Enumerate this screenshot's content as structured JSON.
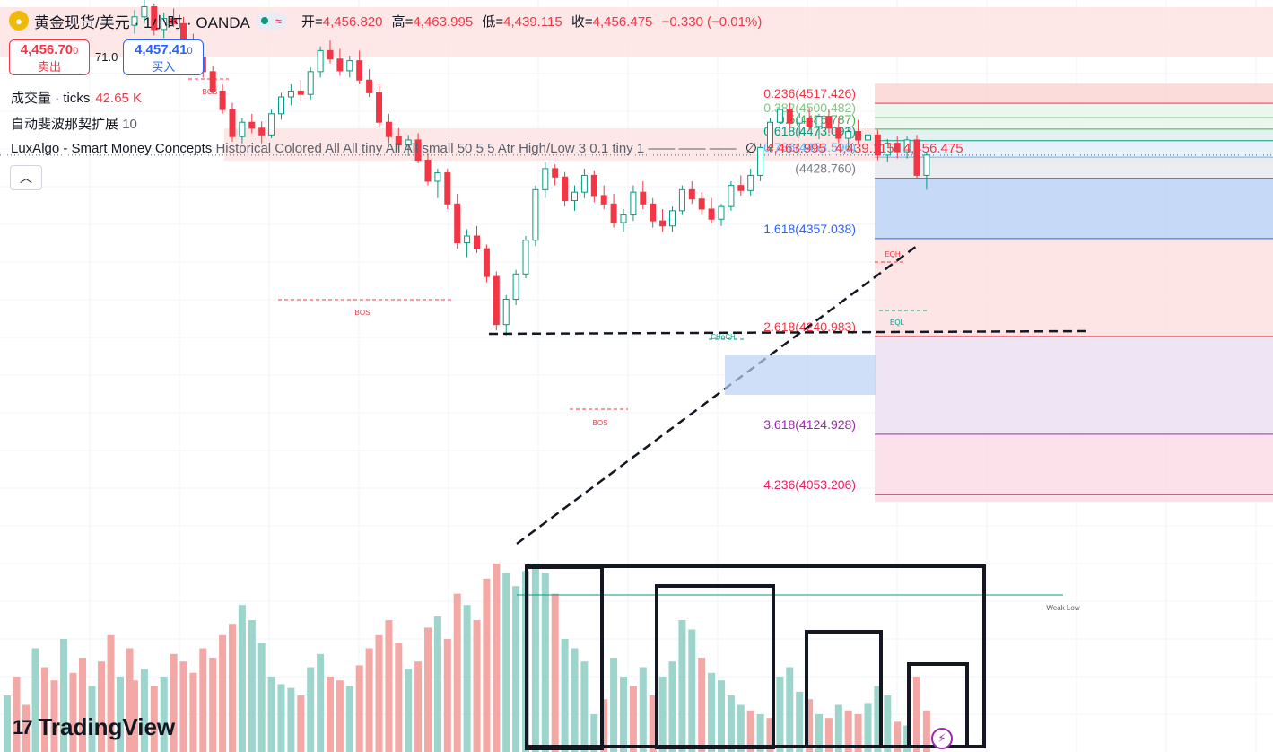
{
  "header": {
    "logo_icon": "gold-coin-icon",
    "title": "黄金现货/美元 · 1小时 · OANDA",
    "status_icon": "market-open-dot-icon",
    "wave_icon": "approx-wave-icon",
    "wave_glyph": "≈",
    "ohlc": {
      "open_label": "开=",
      "open": "4,456.820",
      "high_label": "高=",
      "high": "4,463.995",
      "low_label": "低=",
      "low": "4,439.115",
      "close_label": "收=",
      "close": "4,456.475",
      "change": "−0.330 (−0.01%)"
    }
  },
  "trade": {
    "sell_price": "4,456.70",
    "sell_price_small": "0",
    "sell_label": "卖出",
    "spread": "71.0",
    "buy_price": "4,457.41",
    "buy_price_small": "0",
    "buy_label": "买入"
  },
  "indicators": {
    "volume_name": "成交量 · ticks",
    "volume_value": "42.65 K",
    "fib_name": "自动斐波那契扩展",
    "fib_value": "10",
    "smc_name": "LuxAlgo - Smart Money Concepts",
    "smc_params": "Historical Colored All All tiny All All small 50 5 5 Atr High/Low 3 0.1 tiny 1",
    "smc_dashes": "—— —— ——",
    "smc_symbol": "∅",
    "smc_values": [
      "4,463.995",
      "4,439.115",
      "4,456.475"
    ],
    "collapse_glyph": "︿"
  },
  "brand": {
    "mark": "17",
    "name": "TradingView",
    "bolt_icon": "lightning-icon",
    "bolt_glyph": "⚡"
  },
  "colors": {
    "up": "#089981",
    "down": "#f23645",
    "vol_up": "#9dd4cc",
    "vol_down": "#f4a8a6"
  },
  "chart_data": {
    "type": "candlestick",
    "timeframe": "1小时",
    "y_range": [
      3980,
      4640
    ],
    "candles": [
      [
        4610,
        4628,
        4600,
        4620
      ],
      [
        4620,
        4640,
        4612,
        4632
      ],
      [
        4632,
        4636,
        4598,
        4605
      ],
      [
        4605,
        4625,
        4595,
        4618
      ],
      [
        4618,
        4630,
        4608,
        4612
      ],
      [
        4612,
        4620,
        4585,
        4590
      ],
      [
        4590,
        4600,
        4568,
        4572
      ],
      [
        4572,
        4580,
        4548,
        4555
      ],
      [
        4555,
        4562,
        4528,
        4532
      ],
      [
        4532,
        4540,
        4505,
        4510
      ],
      [
        4510,
        4518,
        4472,
        4478
      ],
      [
        4478,
        4500,
        4470,
        4495
      ],
      [
        4495,
        4505,
        4482,
        4488
      ],
      [
        4488,
        4496,
        4470,
        4480
      ],
      [
        4480,
        4510,
        4476,
        4505
      ],
      [
        4505,
        4530,
        4498,
        4525
      ],
      [
        4525,
        4540,
        4515,
        4532
      ],
      [
        4532,
        4545,
        4520,
        4528
      ],
      [
        4528,
        4560,
        4522,
        4555
      ],
      [
        4555,
        4585,
        4548,
        4580
      ],
      [
        4580,
        4592,
        4565,
        4570
      ],
      [
        4570,
        4582,
        4550,
        4556
      ],
      [
        4556,
        4574,
        4548,
        4568
      ],
      [
        4568,
        4580,
        4540,
        4545
      ],
      [
        4545,
        4558,
        4525,
        4530
      ],
      [
        4530,
        4540,
        4490,
        4495
      ],
      [
        4495,
        4505,
        4470,
        4478
      ],
      [
        4478,
        4488,
        4462,
        4468
      ],
      [
        4468,
        4480,
        4455,
        4474
      ],
      [
        4474,
        4482,
        4446,
        4450
      ],
      [
        4450,
        4458,
        4420,
        4425
      ],
      [
        4425,
        4440,
        4405,
        4435
      ],
      [
        4435,
        4440,
        4392,
        4398
      ],
      [
        4398,
        4410,
        4345,
        4352
      ],
      [
        4352,
        4368,
        4335,
        4360
      ],
      [
        4360,
        4372,
        4340,
        4345
      ],
      [
        4345,
        4350,
        4305,
        4312
      ],
      [
        4312,
        4318,
        4248,
        4255
      ],
      [
        4255,
        4290,
        4242,
        4285
      ],
      [
        4285,
        4320,
        4278,
        4315
      ],
      [
        4315,
        4360,
        4310,
        4355
      ],
      [
        4355,
        4420,
        4348,
        4415
      ],
      [
        4415,
        4448,
        4405,
        4440
      ],
      [
        4440,
        4445,
        4420,
        4430
      ],
      [
        4430,
        4436,
        4395,
        4402
      ],
      [
        4402,
        4420,
        4390,
        4412
      ],
      [
        4412,
        4440,
        4405,
        4432
      ],
      [
        4432,
        4438,
        4400,
        4408
      ],
      [
        4408,
        4420,
        4392,
        4398
      ],
      [
        4398,
        4410,
        4370,
        4376
      ],
      [
        4376,
        4392,
        4365,
        4385
      ],
      [
        4385,
        4420,
        4378,
        4412
      ],
      [
        4412,
        4425,
        4392,
        4398
      ],
      [
        4398,
        4405,
        4370,
        4378
      ],
      [
        4378,
        4392,
        4365,
        4372
      ],
      [
        4372,
        4395,
        4365,
        4390
      ],
      [
        4390,
        4420,
        4385,
        4415
      ],
      [
        4415,
        4425,
        4398,
        4404
      ],
      [
        4404,
        4412,
        4385,
        4392
      ],
      [
        4392,
        4405,
        4375,
        4380
      ],
      [
        4380,
        4398,
        4372,
        4395
      ],
      [
        4395,
        4425,
        4390,
        4420
      ],
      [
        4420,
        4432,
        4408,
        4414
      ],
      [
        4414,
        4440,
        4408,
        4432
      ],
      [
        4432,
        4470,
        4425,
        4465
      ],
      [
        4465,
        4500,
        4460,
        4495
      ],
      [
        4495,
        4520,
        4480,
        4510
      ],
      [
        4510,
        4518,
        4488,
        4494
      ],
      [
        4494,
        4506,
        4478,
        4500
      ],
      [
        4500,
        4512,
        4485,
        4490
      ],
      [
        4490,
        4505,
        4475,
        4502
      ],
      [
        4502,
        4510,
        4482,
        4488
      ],
      [
        4488,
        4500,
        4470,
        4476
      ],
      [
        4476,
        4490,
        4462,
        4484
      ],
      [
        4484,
        4498,
        4470,
        4474
      ],
      [
        4474,
        4488,
        4455,
        4480
      ],
      [
        4480,
        4486,
        4450,
        4456
      ],
      [
        4456,
        4475,
        4448,
        4470
      ],
      [
        4470,
        4478,
        4452,
        4460
      ],
      [
        4460,
        4478,
        4452,
        4474
      ],
      [
        4474,
        4480,
        4428,
        4432
      ],
      [
        4432,
        4460,
        4415,
        4456
      ]
    ],
    "volume": [
      [
        38,
        "d"
      ],
      [
        44,
        "u"
      ],
      [
        35,
        "d"
      ],
      [
        40,
        "u"
      ],
      [
        52,
        "d"
      ],
      [
        48,
        "d"
      ],
      [
        42,
        "d"
      ],
      [
        55,
        "d"
      ],
      [
        50,
        "d"
      ],
      [
        62,
        "d"
      ],
      [
        68,
        "d"
      ],
      [
        78,
        "u"
      ],
      [
        70,
        "u"
      ],
      [
        58,
        "u"
      ],
      [
        40,
        "u"
      ],
      [
        36,
        "u"
      ],
      [
        34,
        "u"
      ],
      [
        30,
        "d"
      ],
      [
        45,
        "u"
      ],
      [
        52,
        "u"
      ],
      [
        40,
        "d"
      ],
      [
        38,
        "d"
      ],
      [
        35,
        "u"
      ],
      [
        46,
        "d"
      ],
      [
        55,
        "d"
      ],
      [
        62,
        "d"
      ],
      [
        70,
        "d"
      ],
      [
        58,
        "d"
      ],
      [
        44,
        "u"
      ],
      [
        48,
        "d"
      ],
      [
        66,
        "d"
      ],
      [
        72,
        "u"
      ],
      [
        60,
        "d"
      ],
      [
        84,
        "d"
      ],
      [
        78,
        "u"
      ],
      [
        70,
        "d"
      ],
      [
        92,
        "d"
      ],
      [
        100,
        "d"
      ],
      [
        95,
        "u"
      ],
      [
        88,
        "u"
      ],
      [
        96,
        "u"
      ],
      [
        100,
        "u"
      ],
      [
        95,
        "u"
      ],
      [
        84,
        "d"
      ],
      [
        60,
        "u"
      ],
      [
        55,
        "u"
      ],
      [
        48,
        "u"
      ],
      [
        20,
        "u"
      ],
      [
        28,
        "d"
      ],
      [
        50,
        "u"
      ],
      [
        40,
        "u"
      ],
      [
        35,
        "d"
      ],
      [
        45,
        "u"
      ],
      [
        30,
        "d"
      ],
      [
        40,
        "u"
      ],
      [
        48,
        "u"
      ],
      [
        70,
        "u"
      ],
      [
        65,
        "u"
      ],
      [
        50,
        "d"
      ],
      [
        42,
        "u"
      ],
      [
        38,
        "u"
      ],
      [
        30,
        "u"
      ],
      [
        25,
        "u"
      ],
      [
        22,
        "d"
      ],
      [
        20,
        "u"
      ],
      [
        18,
        "d"
      ],
      [
        40,
        "u"
      ],
      [
        45,
        "u"
      ],
      [
        32,
        "u"
      ],
      [
        28,
        "d"
      ],
      [
        20,
        "u"
      ],
      [
        18,
        "d"
      ],
      [
        25,
        "u"
      ],
      [
        22,
        "d"
      ],
      [
        20,
        "d"
      ],
      [
        26,
        "u"
      ],
      [
        35,
        "u"
      ],
      [
        30,
        "u"
      ],
      [
        16,
        "d"
      ],
      [
        14,
        "u"
      ],
      [
        40,
        "d"
      ],
      [
        22,
        "d"
      ]
    ],
    "fibonacci": [
      {
        "label": "0.236(4517.426)",
        "value": 4517.426,
        "color": "#f23645"
      },
      {
        "label": "0.382(4500.482)",
        "value": 4500.482,
        "color": "#81c784"
      },
      {
        "label": "0.5(4486.787)",
        "value": 4486.787,
        "color": "#4caf50"
      },
      {
        "label": "0.618(4473.093)",
        "value": 4473.093,
        "color": "#089981"
      },
      {
        "label": "0.786(4453.596)",
        "value": 4453.596,
        "color": "#64b5f6"
      },
      {
        "label": "(4428.760)",
        "value": 4428.76,
        "color": "#787b86"
      },
      {
        "label": "1.618(4357.038)",
        "value": 4357.038,
        "color": "#2962ff"
      },
      {
        "label": "2.618(4240.983)",
        "value": 4240.983,
        "color": "#f23645"
      },
      {
        "label": "3.618(4124.928)",
        "value": 4124.928,
        "color": "#9c27b0"
      },
      {
        "label": "4.236(4053.206)",
        "value": 4053.206,
        "color": "#e91e63"
      }
    ],
    "annotations": [
      "BOS",
      "BOS",
      "BOS",
      "CHoCH",
      "EQH",
      "EQL",
      "Weak Low"
    ],
    "grid": true,
    "x_axis": "hidden",
    "y_axis": "hidden"
  }
}
